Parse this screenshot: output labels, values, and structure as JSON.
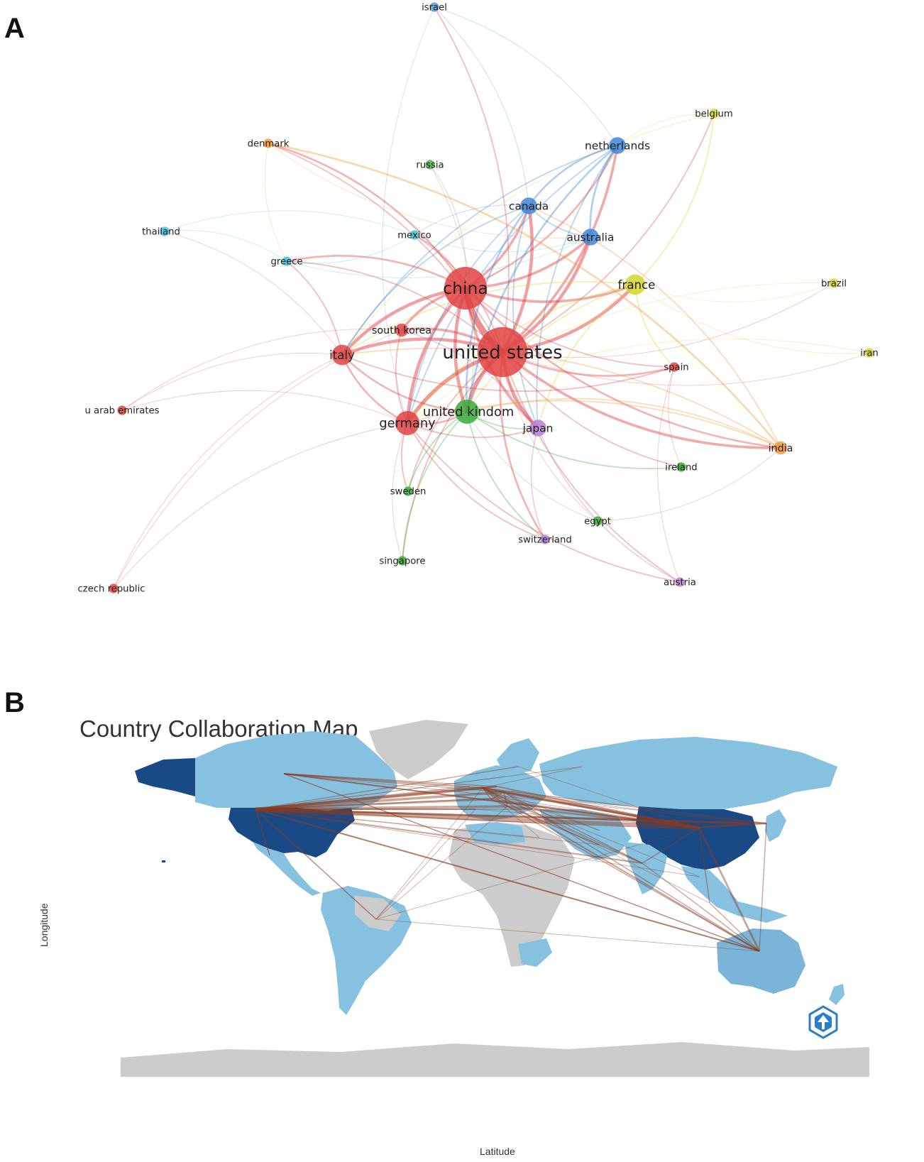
{
  "panel_a": {
    "letter": "A",
    "nodes": [
      {
        "id": "israel",
        "label": "israel",
        "color": "#5b9bd5",
        "weight": 1
      },
      {
        "id": "belgium",
        "label": "belgium",
        "color": "#d4d42c",
        "weight": 1
      },
      {
        "id": "denmark",
        "label": "denmark",
        "color": "#f29a3a",
        "weight": 1
      },
      {
        "id": "netherlands",
        "label": "netherlands",
        "color": "#3f86d6",
        "weight": 3
      },
      {
        "id": "russia",
        "label": "russia",
        "color": "#4caf50",
        "weight": 1
      },
      {
        "id": "canada",
        "label": "canada",
        "color": "#3f86d6",
        "weight": 3
      },
      {
        "id": "thailand",
        "label": "thailand",
        "color": "#3fc1d6",
        "weight": 1
      },
      {
        "id": "mexico",
        "label": "mexico",
        "color": "#3fc1d6",
        "weight": 1
      },
      {
        "id": "australia",
        "label": "australia",
        "color": "#3f86d6",
        "weight": 3
      },
      {
        "id": "greece",
        "label": "greece",
        "color": "#3fc1d6",
        "weight": 1
      },
      {
        "id": "china",
        "label": "china",
        "color": "#e04343",
        "weight": 10
      },
      {
        "id": "france",
        "label": "france",
        "color": "#d4d42c",
        "weight": 4
      },
      {
        "id": "brazil",
        "label": "brazil",
        "color": "#d4d42c",
        "weight": 1
      },
      {
        "id": "south-korea",
        "label": "south korea",
        "color": "#e04343",
        "weight": 2
      },
      {
        "id": "united-states",
        "label": "united states",
        "color": "#e04343",
        "weight": 12
      },
      {
        "id": "italy",
        "label": "italy",
        "color": "#e04343",
        "weight": 4
      },
      {
        "id": "iran",
        "label": "iran",
        "color": "#d4d42c",
        "weight": 1
      },
      {
        "id": "spain",
        "label": "spain",
        "color": "#e04343",
        "weight": 1
      },
      {
        "id": "u-arab-emirates",
        "label": "u arab emirates",
        "color": "#e04343",
        "weight": 1
      },
      {
        "id": "germany",
        "label": "germany",
        "color": "#e04343",
        "weight": 5
      },
      {
        "id": "united-kindom",
        "label": "united kindom",
        "color": "#3aaa3a",
        "weight": 5
      },
      {
        "id": "japan",
        "label": "japan",
        "color": "#b780d6",
        "weight": 3
      },
      {
        "id": "india",
        "label": "india",
        "color": "#f29a3a",
        "weight": 2
      },
      {
        "id": "ireland",
        "label": "ireland",
        "color": "#3aaa3a",
        "weight": 1
      },
      {
        "id": "sweden",
        "label": "sweden",
        "color": "#3aaa3a",
        "weight": 1
      },
      {
        "id": "egypt",
        "label": "egypt",
        "color": "#3aaa3a",
        "weight": 1
      },
      {
        "id": "switzerland",
        "label": "switzerland",
        "color": "#b780d6",
        "weight": 1
      },
      {
        "id": "singapore",
        "label": "singapore",
        "color": "#3aaa3a",
        "weight": 1
      },
      {
        "id": "czech-republic",
        "label": "czech republic",
        "color": "#e04343",
        "weight": 1
      },
      {
        "id": "austria",
        "label": "austria",
        "color": "#b780d6",
        "weight": 1
      }
    ],
    "edges": [
      [
        "china",
        "united-states",
        10
      ],
      [
        "china",
        "united-kindom",
        5
      ],
      [
        "china",
        "italy",
        5
      ],
      [
        "china",
        "germany",
        5
      ],
      [
        "china",
        "south-korea",
        4
      ],
      [
        "china",
        "canada",
        4
      ],
      [
        "china",
        "australia",
        4
      ],
      [
        "china",
        "france",
        4
      ],
      [
        "china",
        "japan",
        4
      ],
      [
        "china",
        "netherlands",
        3
      ],
      [
        "china",
        "greece",
        3
      ],
      [
        "china",
        "mexico",
        2
      ],
      [
        "china",
        "india",
        3
      ],
      [
        "china",
        "spain",
        2
      ],
      [
        "china",
        "denmark",
        3
      ],
      [
        "china",
        "russia",
        1
      ],
      [
        "united-states",
        "united-kindom",
        6
      ],
      [
        "united-states",
        "italy",
        5
      ],
      [
        "united-states",
        "germany",
        6
      ],
      [
        "united-states",
        "canada",
        5
      ],
      [
        "united-states",
        "australia",
        5
      ],
      [
        "united-states",
        "france",
        5
      ],
      [
        "united-states",
        "japan",
        5
      ],
      [
        "united-states",
        "netherlands",
        4
      ],
      [
        "united-states",
        "india",
        4
      ],
      [
        "united-states",
        "spain",
        3
      ],
      [
        "united-states",
        "south-korea",
        4
      ],
      [
        "united-states",
        "greece",
        2
      ],
      [
        "united-states",
        "switzerland",
        3
      ],
      [
        "united-states",
        "austria",
        2
      ],
      [
        "united-states",
        "ireland",
        2
      ],
      [
        "united-states",
        "sweden",
        2
      ],
      [
        "united-states",
        "singapore",
        2
      ],
      [
        "united-states",
        "israel",
        2
      ],
      [
        "united-states",
        "belgium",
        2
      ],
      [
        "united-states",
        "brazil",
        1
      ],
      [
        "united-states",
        "iran",
        1
      ],
      [
        "united-states",
        "egypt",
        1
      ],
      [
        "united-states",
        "denmark",
        2
      ],
      [
        "united-states",
        "mexico",
        2
      ],
      [
        "netherlands",
        "canada",
        3
      ],
      [
        "netherlands",
        "australia",
        3
      ],
      [
        "netherlands",
        "united-kindom",
        3
      ],
      [
        "netherlands",
        "germany",
        2
      ],
      [
        "netherlands",
        "italy",
        2
      ],
      [
        "netherlands",
        "japan",
        2
      ],
      [
        "netherlands",
        "israel",
        1
      ],
      [
        "canada",
        "australia",
        2
      ],
      [
        "canada",
        "united-kindom",
        3
      ],
      [
        "canada",
        "germany",
        2
      ],
      [
        "canada",
        "italy",
        2
      ],
      [
        "canada",
        "japan",
        2
      ],
      [
        "canada",
        "israel",
        1
      ],
      [
        "canada",
        "mexico",
        1
      ],
      [
        "france",
        "belgium",
        2
      ],
      [
        "france",
        "brazil",
        1
      ],
      [
        "france",
        "iran",
        1
      ],
      [
        "france",
        "italy",
        2
      ],
      [
        "france",
        "germany",
        2
      ],
      [
        "france",
        "united-kindom",
        2
      ],
      [
        "france",
        "spain",
        2
      ],
      [
        "france",
        "japan",
        2
      ],
      [
        "india",
        "denmark",
        3
      ],
      [
        "india",
        "italy",
        2
      ],
      [
        "india",
        "germany",
        2
      ],
      [
        "india",
        "united-kindom",
        2
      ],
      [
        "india",
        "canada",
        2
      ],
      [
        "italy",
        "greece",
        2
      ],
      [
        "italy",
        "germany",
        3
      ],
      [
        "italy",
        "united-kindom",
        3
      ],
      [
        "italy",
        "spain",
        2
      ],
      [
        "italy",
        "u-arab-emirates",
        1
      ],
      [
        "italy",
        "czech-republic",
        1
      ],
      [
        "italy",
        "thailand",
        1
      ],
      [
        "germany",
        "united-kindom",
        3
      ],
      [
        "germany",
        "sweden",
        2
      ],
      [
        "germany",
        "singapore",
        1
      ],
      [
        "germany",
        "japan",
        2
      ],
      [
        "germany",
        "switzerland",
        2
      ],
      [
        "germany",
        "austria",
        2
      ],
      [
        "germany",
        "u-arab-emirates",
        1
      ],
      [
        "germany",
        "czech-republic",
        1
      ],
      [
        "united-kindom",
        "sweden",
        2
      ],
      [
        "united-kindom",
        "singapore",
        2
      ],
      [
        "united-kindom",
        "ireland",
        2
      ],
      [
        "united-kindom",
        "egypt",
        1
      ],
      [
        "united-kindom",
        "japan",
        2
      ],
      [
        "united-kindom",
        "russia",
        1
      ],
      [
        "united-kindom",
        "switzerland",
        2
      ],
      [
        "japan",
        "switzerland",
        2
      ],
      [
        "japan",
        "austria",
        2
      ],
      [
        "japan",
        "south-korea",
        2
      ],
      [
        "greece",
        "thailand",
        1
      ],
      [
        "greece",
        "mexico",
        1
      ],
      [
        "greece",
        "australia",
        1
      ],
      [
        "south-korea",
        "u-arab-emirates",
        1
      ],
      [
        "south-korea",
        "czech-republic",
        1
      ],
      [
        "south-korea",
        "germany",
        2
      ],
      [
        "mexico",
        "thailand",
        1
      ],
      [
        "mexico",
        "australia",
        1
      ],
      [
        "denmark",
        "greece",
        1
      ],
      [
        "denmark",
        "australia",
        1
      ],
      [
        "belgium",
        "netherlands",
        1
      ],
      [
        "belgium",
        "italy",
        1
      ],
      [
        "brazil",
        "germany",
        1
      ],
      [
        "iran",
        "germany",
        1
      ],
      [
        "spain",
        "ireland",
        1
      ],
      [
        "spain",
        "austria",
        1
      ],
      [
        "egypt",
        "india",
        1
      ],
      [
        "israel",
        "germany",
        1
      ]
    ]
  },
  "panel_b": {
    "letter": "B",
    "title": "Country Collaboration Map",
    "xlabel": "Latitude",
    "ylabel": "Longitude",
    "colors": {
      "no_data": "#cccccc",
      "low": "#86c1df",
      "mid": "#7ab4d6",
      "high": "#1a4a86",
      "link": "#8b3a1f"
    },
    "logo_icon": "hexagon-tree-icon"
  }
}
